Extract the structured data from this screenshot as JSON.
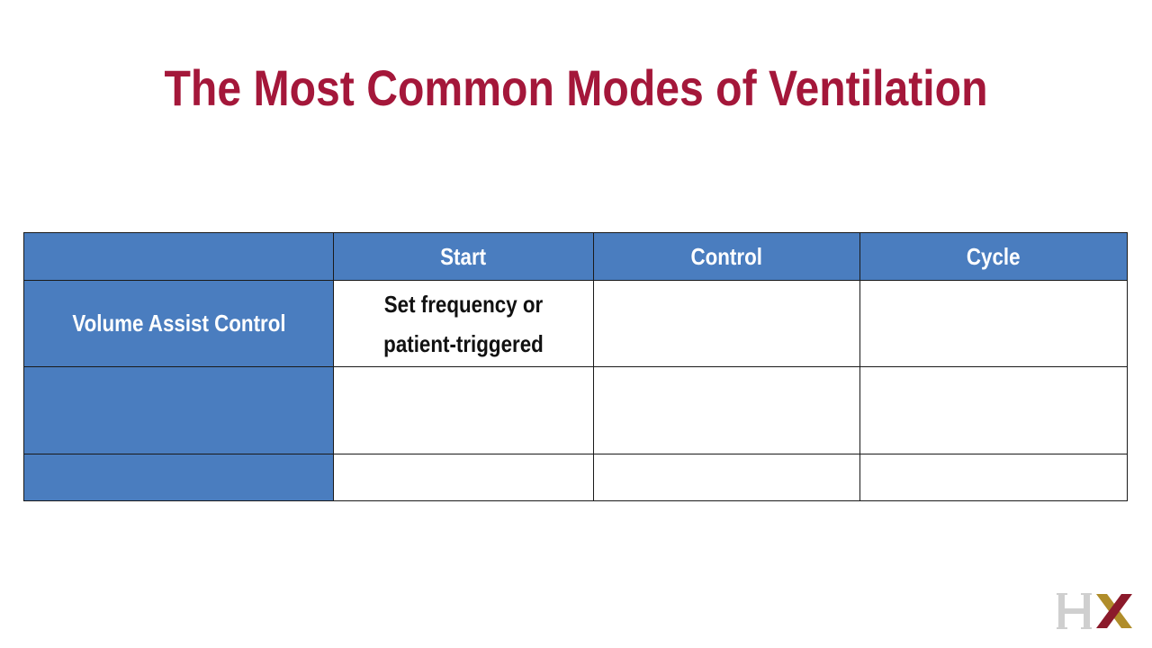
{
  "slide": {
    "title": "The Most Common Modes of Ventilation"
  },
  "table": {
    "headers": [
      "",
      "Start",
      "Control",
      "Cycle"
    ],
    "rows": [
      {
        "label": "Volume Assist Control",
        "cells": [
          "Set frequency or patient-triggered",
          "",
          ""
        ]
      },
      {
        "label": "",
        "cells": [
          "",
          "",
          ""
        ]
      },
      {
        "label": "",
        "cells": [
          "",
          "",
          ""
        ]
      }
    ]
  },
  "colors": {
    "title": "#a4173a",
    "header_fill": "#4a7dbf",
    "logo_gray": "#cfcfcf",
    "logo_gold": "#b08d2a",
    "logo_red": "#8b1a2b"
  },
  "logo": {
    "text": "HX"
  }
}
